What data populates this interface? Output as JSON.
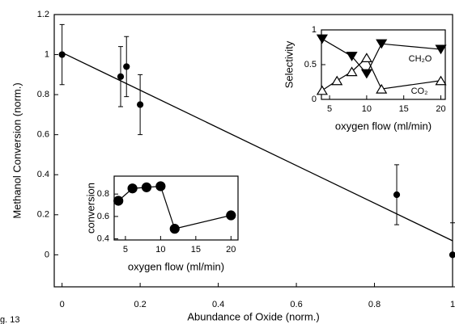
{
  "figure_label": "g. 13",
  "chart_data": [
    {
      "type": "scatter",
      "xlabel": "Abundance of Oxide (norm.)",
      "ylabel": "Methanol Conversion (norm.)",
      "xlim": [
        -0.02,
        1.0
      ],
      "ylim": [
        -0.16,
        1.2
      ],
      "xticks": [
        0,
        0.2,
        0.4,
        0.6,
        0.8,
        1
      ],
      "yticks": [
        0,
        0.2,
        0.4,
        0.6,
        0.8,
        1,
        1.2
      ],
      "series": [
        {
          "x": [
            0,
            0.15,
            0.165,
            0.2,
            0.857,
            1.0
          ],
          "values": [
            1.0,
            0.89,
            0.94,
            0.75,
            0.3,
            0.0
          ],
          "errors": [
            0.15,
            0.15,
            0.15,
            0.15,
            0.15,
            0.16
          ],
          "color": "#000000",
          "marker": "circle",
          "filled": true
        }
      ],
      "fit": {
        "x": [
          0,
          1.0
        ],
        "y": [
          1.01,
          0.07
        ]
      }
    },
    {
      "type": "line",
      "xlabel": "oxygen flow (ml/min)",
      "ylabel": "Selectivity",
      "xlim": [
        3.9,
        20.6
      ],
      "ylim": [
        0,
        1
      ],
      "xticks": [
        5,
        10,
        15,
        20
      ],
      "yticks": [
        0,
        0.5,
        1
      ],
      "series": [
        {
          "name": "CH₂O",
          "x": [
            4,
            8,
            10,
            12,
            20
          ],
          "values": [
            0.87,
            0.62,
            0.37,
            0.8,
            0.72
          ],
          "color": "#000000",
          "marker": "triangle-down",
          "filled": true
        },
        {
          "name": "CO₂",
          "x": [
            4,
            6,
            8,
            10,
            12,
            20
          ],
          "values": [
            0.13,
            0.27,
            0.4,
            0.6,
            0.15,
            0.27
          ],
          "color": "#000000",
          "marker": "triangle-up",
          "filled": false
        }
      ]
    },
    {
      "type": "line",
      "xlabel": "oxygen flow (ml/min)",
      "ylabel": "conversion",
      "xlim": [
        3.4,
        21
      ],
      "ylim": [
        0.39,
        0.96
      ],
      "xticks": [
        5,
        10,
        15,
        20
      ],
      "yticks": [
        0.4,
        0.6,
        0.8
      ],
      "series": [
        {
          "x": [
            4,
            6,
            8,
            10,
            12,
            20
          ],
          "values": [
            0.74,
            0.85,
            0.86,
            0.87,
            0.49,
            0.61
          ],
          "color": "#000000",
          "marker": "circle",
          "filled": true
        }
      ]
    }
  ]
}
